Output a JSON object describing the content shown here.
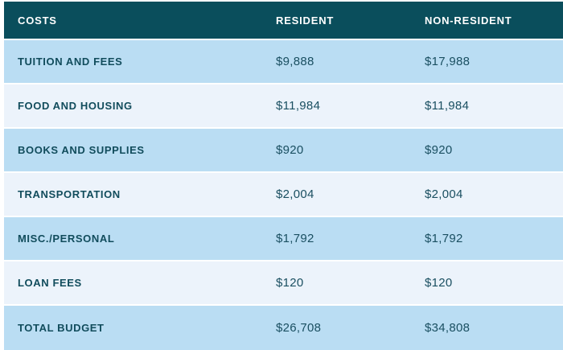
{
  "chart_data": {
    "type": "table",
    "columns": [
      "COSTS",
      "RESIDENT",
      "NON-RESIDENT"
    ],
    "rows": [
      [
        "TUITION AND FEES",
        "$9,888",
        "$17,988"
      ],
      [
        "FOOD AND HOUSING",
        "$11,984",
        "$11,984"
      ],
      [
        "BOOKS AND SUPPLIES",
        "$920",
        "$920"
      ],
      [
        "TRANSPORTATION",
        "$2,004",
        "$2,004"
      ],
      [
        "MISC./PERSONAL",
        "$1,792",
        "$1,792"
      ],
      [
        "LOAN FEES",
        "$120",
        "$120"
      ],
      [
        "TOTAL BUDGET",
        "$26,708",
        "$34,808"
      ]
    ],
    "resident_values_numeric": [
      9888,
      11984,
      920,
      2004,
      1792,
      120,
      26708
    ],
    "non_resident_values_numeric": [
      17988,
      11984,
      920,
      2004,
      1792,
      120,
      34808
    ]
  },
  "table": {
    "header": {
      "costs": "COSTS",
      "resident": "RESIDENT",
      "non_resident": "NON-RESIDENT"
    },
    "rows": [
      {
        "label": "TUITION AND FEES",
        "resident": "$9,888",
        "non_resident": "$17,988"
      },
      {
        "label": "FOOD AND HOUSING",
        "resident": "$11,984",
        "non_resident": "$11,984"
      },
      {
        "label": "BOOKS AND SUPPLIES",
        "resident": "$920",
        "non_resident": "$920"
      },
      {
        "label": "TRANSPORTATION",
        "resident": "$2,004",
        "non_resident": "$2,004"
      },
      {
        "label": "MISC./PERSONAL",
        "resident": "$1,792",
        "non_resident": "$1,792"
      },
      {
        "label": "LOAN FEES",
        "resident": "$120",
        "non_resident": "$120"
      },
      {
        "label": "TOTAL BUDGET",
        "resident": "$26,708",
        "non_resident": "$34,808"
      }
    ]
  },
  "colors": {
    "header_bg": "#0a4e5c",
    "row_odd_bg": "#baddf3",
    "row_even_bg": "#ecf3fb",
    "header_text": "#ffffff",
    "label_text": "#114c5c",
    "value_text": "#1a4f61",
    "page_bg": "#ffffff"
  }
}
